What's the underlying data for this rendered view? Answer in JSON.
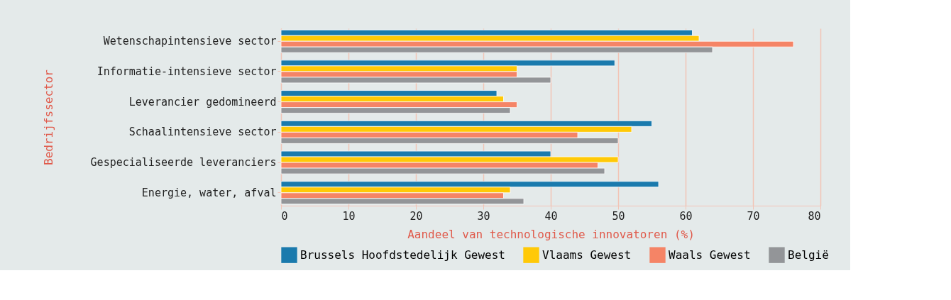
{
  "chart_data": {
    "type": "bar",
    "orientation": "horizontal",
    "xlabel": "Aandeel van technologische innovatoren (%)",
    "ylabel": "Bedrijfssector",
    "categories": [
      "Wetenschapintensieve sector",
      "Informatie-intensieve sector",
      "Leverancier gedomineerd",
      "Schaalintensieve sector",
      "Gespecialiseerde leveranciers",
      "Energie, water, afval"
    ],
    "series": [
      {
        "name": "Brussels Hoofdstedelijk Gewest",
        "color": "#1a7aad",
        "values": [
          61,
          49.5,
          32,
          55,
          40,
          56
        ]
      },
      {
        "name": "Vlaams Gewest",
        "color": "#ffc907",
        "values": [
          62,
          35,
          33,
          52,
          50,
          34
        ]
      },
      {
        "name": "Waals Gewest",
        "color": "#f58466",
        "values": [
          76,
          35,
          35,
          44,
          47,
          33
        ]
      },
      {
        "name": "België",
        "color": "#939598",
        "values": [
          64,
          40,
          34,
          50,
          48,
          36
        ]
      }
    ],
    "xlim": [
      0,
      80
    ],
    "xticks": [
      0,
      10,
      20,
      30,
      40,
      50,
      60,
      70,
      80
    ],
    "grid": "x",
    "legend": "bottom"
  }
}
